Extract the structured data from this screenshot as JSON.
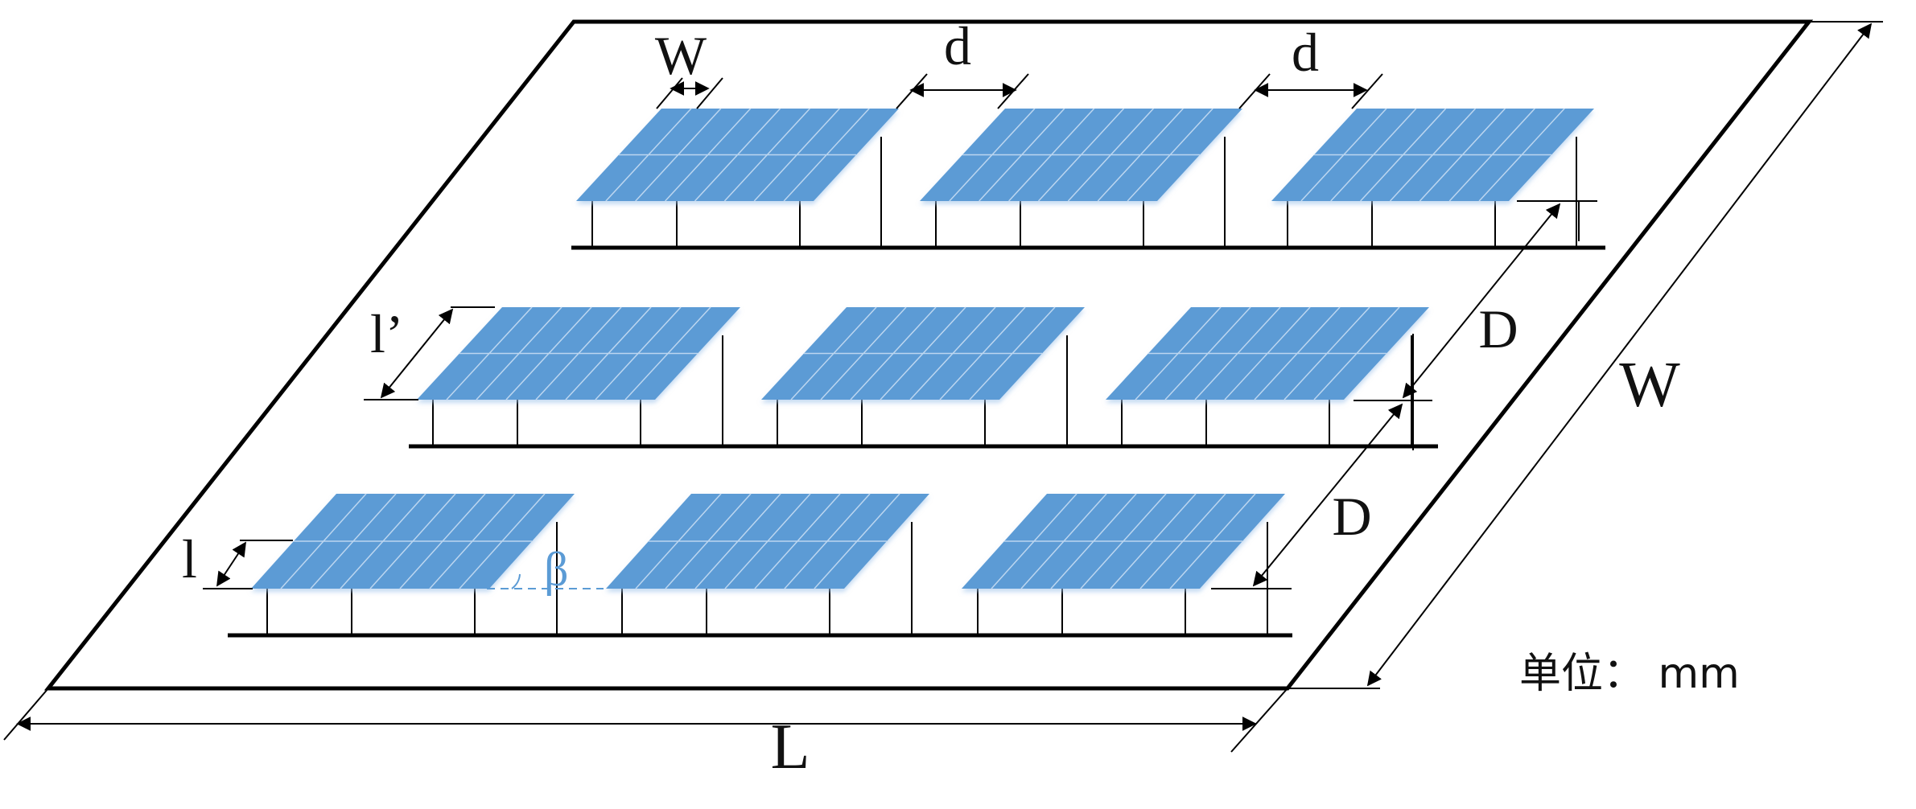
{
  "colors": {
    "panel_fill": "#5b9bd5",
    "panel_grid": "#bcd6f0",
    "line": "#000000",
    "beta": "#5b9bd5"
  },
  "labels": {
    "panel_width": "W",
    "spacing_1": "d",
    "spacing_2": "d",
    "slant_length_top": "l’",
    "slant_length_bottom": "l",
    "tilt_angle": "β",
    "row_pitch_1": "D",
    "row_pitch_2": "D",
    "field_width": "W",
    "field_length": "L",
    "unit": "单位： mm"
  },
  "layout": {
    "rows": 3,
    "panels_per_row": 3,
    "cell_columns": 8,
    "cell_rows": 2
  }
}
